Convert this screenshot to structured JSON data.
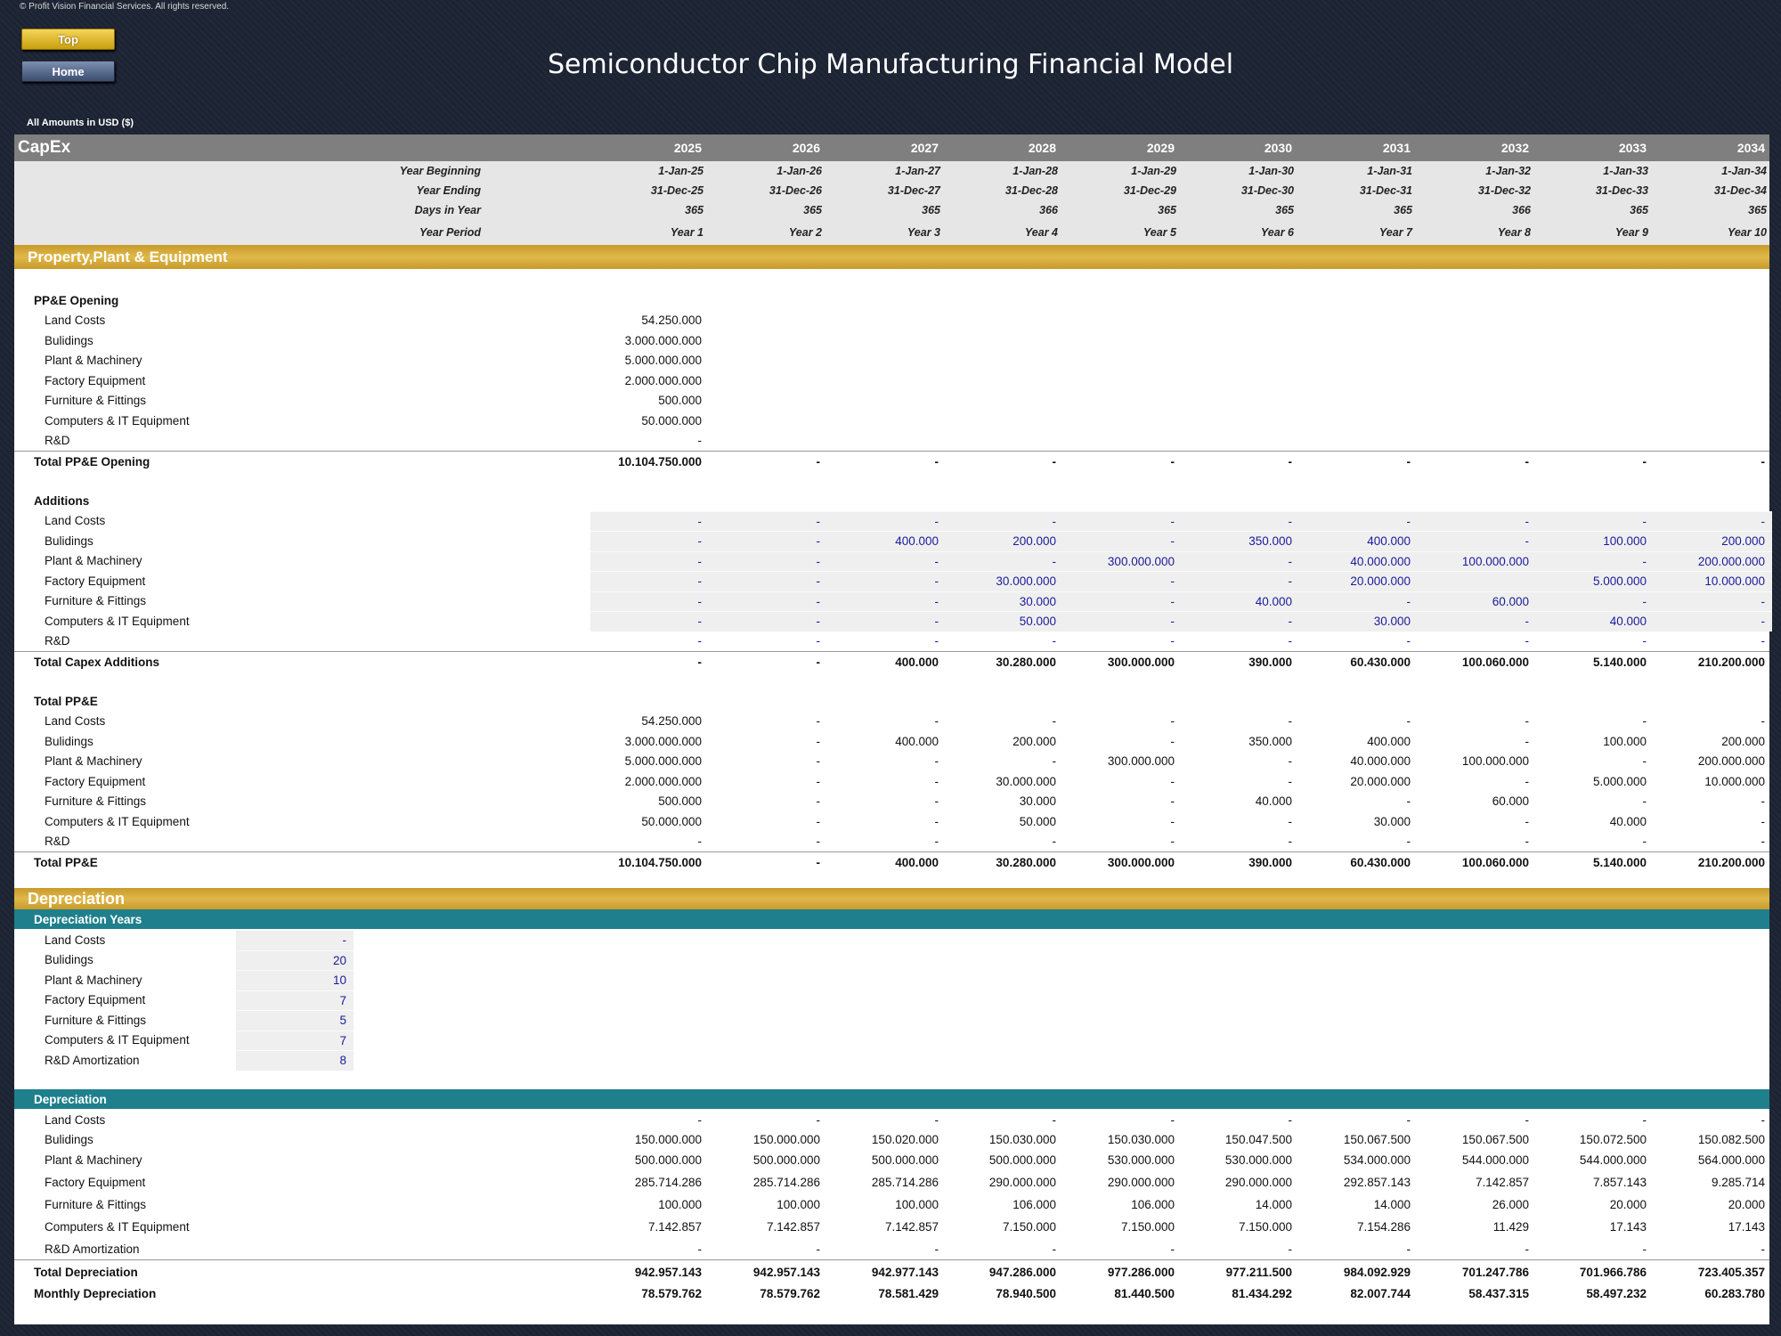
{
  "copyright": "© Profit Vision Financial Services. All rights reserved.",
  "nav": {
    "top_label": "Top",
    "home_label": "Home"
  },
  "title": "Semiconductor Chip Manufacturing Financial Model",
  "amounts_note": "All Amounts in  USD ($)",
  "sheet_name": "CapEx",
  "years": [
    "2025",
    "2026",
    "2027",
    "2028",
    "2029",
    "2030",
    "2031",
    "2032",
    "2033",
    "2034"
  ],
  "header_rows": [
    {
      "label": "Year Beginning",
      "values": [
        "1-Jan-25",
        "1-Jan-26",
        "1-Jan-27",
        "1-Jan-28",
        "1-Jan-29",
        "1-Jan-30",
        "1-Jan-31",
        "1-Jan-32",
        "1-Jan-33",
        "1-Jan-34"
      ]
    },
    {
      "label": "Year Ending",
      "values": [
        "31-Dec-25",
        "31-Dec-26",
        "31-Dec-27",
        "31-Dec-28",
        "31-Dec-29",
        "31-Dec-30",
        "31-Dec-31",
        "31-Dec-32",
        "31-Dec-33",
        "31-Dec-34"
      ]
    },
    {
      "label": "Days in Year",
      "values": [
        "365",
        "365",
        "365",
        "366",
        "365",
        "365",
        "365",
        "366",
        "365",
        "365"
      ]
    },
    {
      "label": "Year Period",
      "values": [
        "Year 1",
        "Year 2",
        "Year 3",
        "Year 4",
        "Year 5",
        "Year 6",
        "Year 7",
        "Year 8",
        "Year 9",
        "Year 10"
      ]
    }
  ],
  "ppe_section_title": "Property,Plant & Equipment",
  "ppe_opening": {
    "title": "PP&E Opening",
    "items": [
      {
        "label": "Land Costs",
        "value": "54.250.000"
      },
      {
        "label": "Bulidings",
        "value": "3.000.000.000"
      },
      {
        "label": "Plant & Machinery",
        "value": "5.000.000.000"
      },
      {
        "label": "Factory Equipment",
        "value": "2.000.000.000"
      },
      {
        "label": "Furniture & Fittings",
        "value": "500.000"
      },
      {
        "label": "Computers & IT Equipment",
        "value": "50.000.000"
      },
      {
        "label": "R&D",
        "value": "-"
      }
    ],
    "total_label": "Total PP&E Opening",
    "total_values": [
      "10.104.750.000",
      "-",
      "-",
      "-",
      "-",
      "-",
      "-",
      "-",
      "-",
      "-"
    ]
  },
  "additions": {
    "title": "Additions",
    "items": [
      {
        "label": "Land Costs",
        "values": [
          "-",
          "-",
          "-",
          "-",
          "-",
          "-",
          "-",
          "-",
          "-",
          "-"
        ]
      },
      {
        "label": "Bulidings",
        "values": [
          "-",
          "-",
          "400.000",
          "200.000",
          "-",
          "350.000",
          "400.000",
          "-",
          "100.000",
          "200.000"
        ]
      },
      {
        "label": "Plant & Machinery",
        "values": [
          "-",
          "-",
          "-",
          "-",
          "300.000.000",
          "-",
          "40.000.000",
          "100.000.000",
          "-",
          "200.000.000"
        ]
      },
      {
        "label": "Factory Equipment",
        "values": [
          "-",
          "-",
          "-",
          "30.000.000",
          "-",
          "-",
          "20.000.000",
          "",
          "5.000.000",
          "10.000.000"
        ]
      },
      {
        "label": "Furniture & Fittings",
        "values": [
          "-",
          "-",
          "-",
          "30.000",
          "-",
          "40.000",
          "-",
          "60.000",
          "-",
          "-"
        ]
      },
      {
        "label": "Computers & IT Equipment",
        "values": [
          "-",
          "-",
          "-",
          "50.000",
          "-",
          "-",
          "30.000",
          "-",
          "40.000",
          "-"
        ]
      },
      {
        "label": "R&D",
        "values": [
          "-",
          "-",
          "-",
          "-",
          "-",
          "-",
          "-",
          "-",
          "-",
          "-"
        ]
      }
    ],
    "total_label": "Total Capex Additions",
    "total_values": [
      "-",
      "-",
      "400.000",
      "30.280.000",
      "300.000.000",
      "390.000",
      "60.430.000",
      "100.060.000",
      "5.140.000",
      "210.200.000"
    ]
  },
  "total_ppe": {
    "title": "Total PP&E",
    "items": [
      {
        "label": "Land Costs",
        "values": [
          "54.250.000",
          "-",
          "-",
          "-",
          "-",
          "-",
          "-",
          "-",
          "-",
          "-"
        ]
      },
      {
        "label": "Bulidings",
        "values": [
          "3.000.000.000",
          "-",
          "400.000",
          "200.000",
          "-",
          "350.000",
          "400.000",
          "-",
          "100.000",
          "200.000"
        ]
      },
      {
        "label": "Plant & Machinery",
        "values": [
          "5.000.000.000",
          "-",
          "-",
          "-",
          "300.000.000",
          "-",
          "40.000.000",
          "100.000.000",
          "-",
          "200.000.000"
        ]
      },
      {
        "label": "Factory Equipment",
        "values": [
          "2.000.000.000",
          "-",
          "-",
          "30.000.000",
          "-",
          "-",
          "20.000.000",
          "-",
          "5.000.000",
          "10.000.000"
        ]
      },
      {
        "label": "Furniture & Fittings",
        "values": [
          "500.000",
          "-",
          "-",
          "30.000",
          "-",
          "40.000",
          "-",
          "60.000",
          "-",
          "-"
        ]
      },
      {
        "label": "Computers & IT Equipment",
        "values": [
          "50.000.000",
          "-",
          "-",
          "50.000",
          "-",
          "-",
          "30.000",
          "-",
          "40.000",
          "-"
        ]
      },
      {
        "label": "R&D",
        "values": [
          "-",
          "-",
          "-",
          "-",
          "-",
          "-",
          "-",
          "-",
          "-",
          "-"
        ]
      }
    ],
    "total_label": "Total PP&E",
    "total_values": [
      "10.104.750.000",
      "-",
      "400.000",
      "30.280.000",
      "300.000.000",
      "390.000",
      "60.430.000",
      "100.060.000",
      "5.140.000",
      "210.200.000"
    ]
  },
  "dep_section_title": "Depreciation",
  "dep_years": {
    "title": "Depreciation Years",
    "items": [
      {
        "label": "Land Costs",
        "value": "-"
      },
      {
        "label": "Bulidings",
        "value": "20"
      },
      {
        "label": "Plant & Machinery",
        "value": "10"
      },
      {
        "label": "Factory Equipment",
        "value": "7"
      },
      {
        "label": "Furniture & Fittings",
        "value": "5"
      },
      {
        "label": "Computers & IT Equipment",
        "value": "7"
      },
      {
        "label": "R&D Amortization",
        "value": "8"
      }
    ]
  },
  "depreciation": {
    "title": "Depreciation",
    "items": [
      {
        "label": "Land Costs",
        "values": [
          "-",
          "-",
          "-",
          "-",
          "-",
          "-",
          "-",
          "-",
          "-",
          "-"
        ]
      },
      {
        "label": "Bulidings",
        "values": [
          "150.000.000",
          "150.000.000",
          "150.020.000",
          "150.030.000",
          "150.030.000",
          "150.047.500",
          "150.067.500",
          "150.067.500",
          "150.072.500",
          "150.082.500"
        ]
      },
      {
        "label": "Plant & Machinery",
        "values": [
          "500.000.000",
          "500.000.000",
          "500.000.000",
          "500.000.000",
          "530.000.000",
          "530.000.000",
          "534.000.000",
          "544.000.000",
          "544.000.000",
          "564.000.000"
        ]
      },
      {
        "label": "Factory Equipment",
        "values": [
          "285.714.286",
          "285.714.286",
          "285.714.286",
          "290.000.000",
          "290.000.000",
          "290.000.000",
          "292.857.143",
          "7.142.857",
          "7.857.143",
          "9.285.714"
        ]
      },
      {
        "label": "Furniture & Fittings",
        "values": [
          "100.000",
          "100.000",
          "100.000",
          "106.000",
          "106.000",
          "14.000",
          "14.000",
          "26.000",
          "20.000",
          "20.000"
        ]
      },
      {
        "label": "Computers & IT Equipment",
        "values": [
          "7.142.857",
          "7.142.857",
          "7.142.857",
          "7.150.000",
          "7.150.000",
          "7.150.000",
          "7.154.286",
          "11.429",
          "17.143",
          "17.143"
        ]
      },
      {
        "label": "R&D Amortization",
        "values": [
          "-",
          "-",
          "-",
          "-",
          "-",
          "-",
          "-",
          "-",
          "-",
          "-"
        ]
      }
    ],
    "total_label": "Total Depreciation",
    "total_values": [
      "942.957.143",
      "942.957.143",
      "942.977.143",
      "947.286.000",
      "977.286.000",
      "977.211.500",
      "984.092.929",
      "701.247.786",
      "701.966.786",
      "723.405.357"
    ],
    "monthly_label": "Monthly Depreciation",
    "monthly_values": [
      "78.579.762",
      "78.579.762",
      "78.581.429",
      "78.940.500",
      "81.440.500",
      "81.434.292",
      "82.007.744",
      "58.437.315",
      "58.497.232",
      "60.283.780"
    ]
  }
}
